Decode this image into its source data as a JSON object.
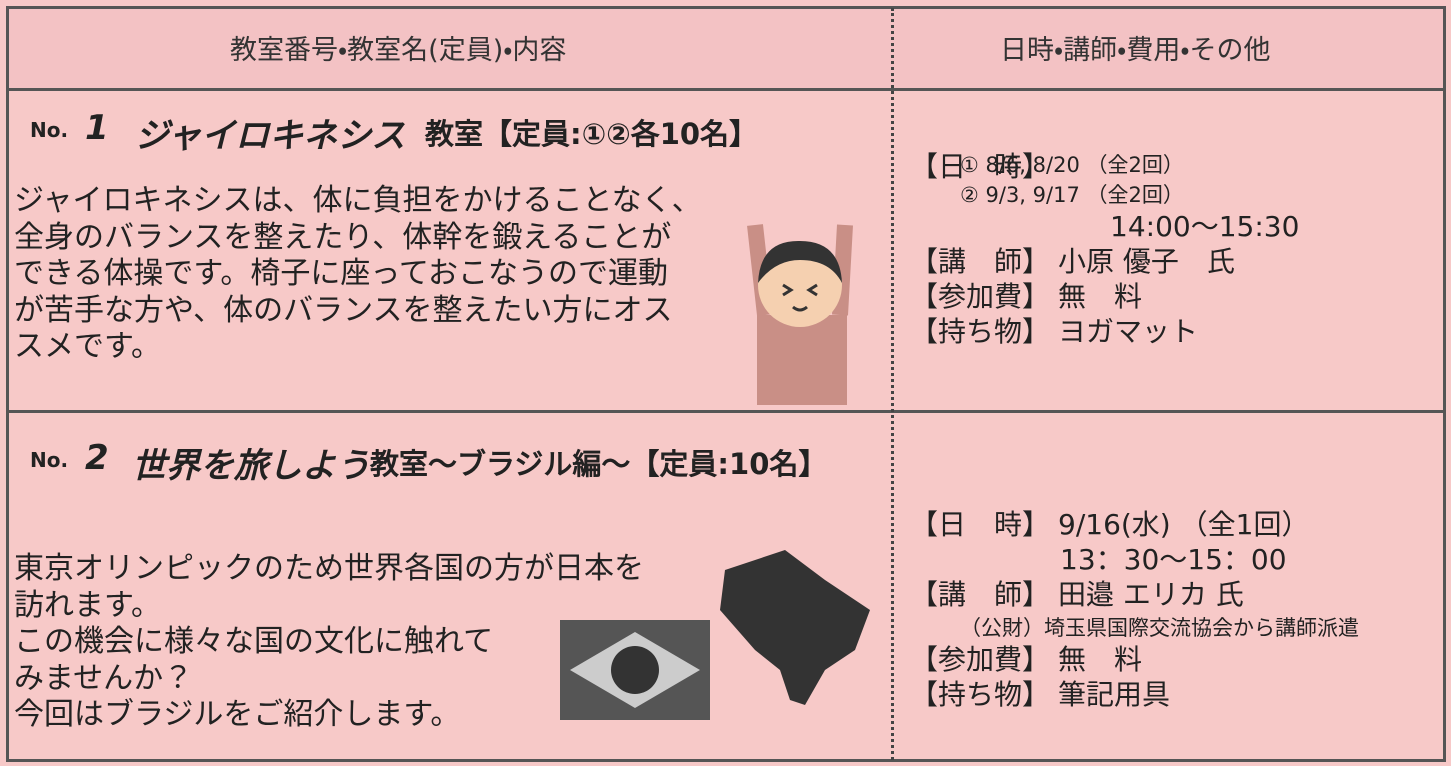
{
  "header": {
    "left": "教室番号・教室名(定員)・内容",
    "right": "日時・講師・費用・その他"
  },
  "classes": [
    {
      "no_label": "No.",
      "number": "1",
      "name": "ジャイロキネシス",
      "name_suffix": "教室【定員:①②各10名】",
      "description": [
        "ジャイロキネシスは、体に負担をかけることなく、",
        "全身のバランスを整えたり、体幹を鍛えることが",
        "できる体操です。椅子に座っておこなうので運動",
        "が苦手な方や、体のバランスを整えたい方にオス",
        "スメです。"
      ],
      "details": [
        {
          "label": "【日　時】",
          "lines": [
            "① 8/6, 8/20 （全2回）",
            "② 9/3, 9/17 （全2回）",
            "14:00〜15:30"
          ]
        },
        {
          "label": "【講　師】",
          "lines": [
            "小原 優子　氏"
          ]
        },
        {
          "label": "【参加費】",
          "lines": [
            "無　料"
          ]
        },
        {
          "label": "【持ち物】",
          "lines": [
            "ヨガマット"
          ]
        }
      ]
    },
    {
      "no_label": "No.",
      "number": "2",
      "name": "世界を旅しよう",
      "name_suffix": "教室〜ブラジル編〜【定員:10名】",
      "description": [
        "東京オリンピックのため世界各国の方が日本を",
        "訪れます。",
        "この機会に様々な国の文化に触れて",
        "みませんか？",
        "今回はブラジルをご紹介します。"
      ],
      "details": [
        {
          "label": "【日　時】",
          "lines": [
            "9/16(水) （全1回）",
            "13：30〜15：00"
          ]
        },
        {
          "label": "【講　師】",
          "lines": [
            "田邉 エリカ 氏",
            "（公財）埼玉県国際交流協会から講師派遣"
          ]
        },
        {
          "label": "【参加費】",
          "lines": [
            "無　料"
          ]
        },
        {
          "label": "【持ち物】",
          "lines": [
            "筆記用具"
          ]
        }
      ]
    }
  ]
}
